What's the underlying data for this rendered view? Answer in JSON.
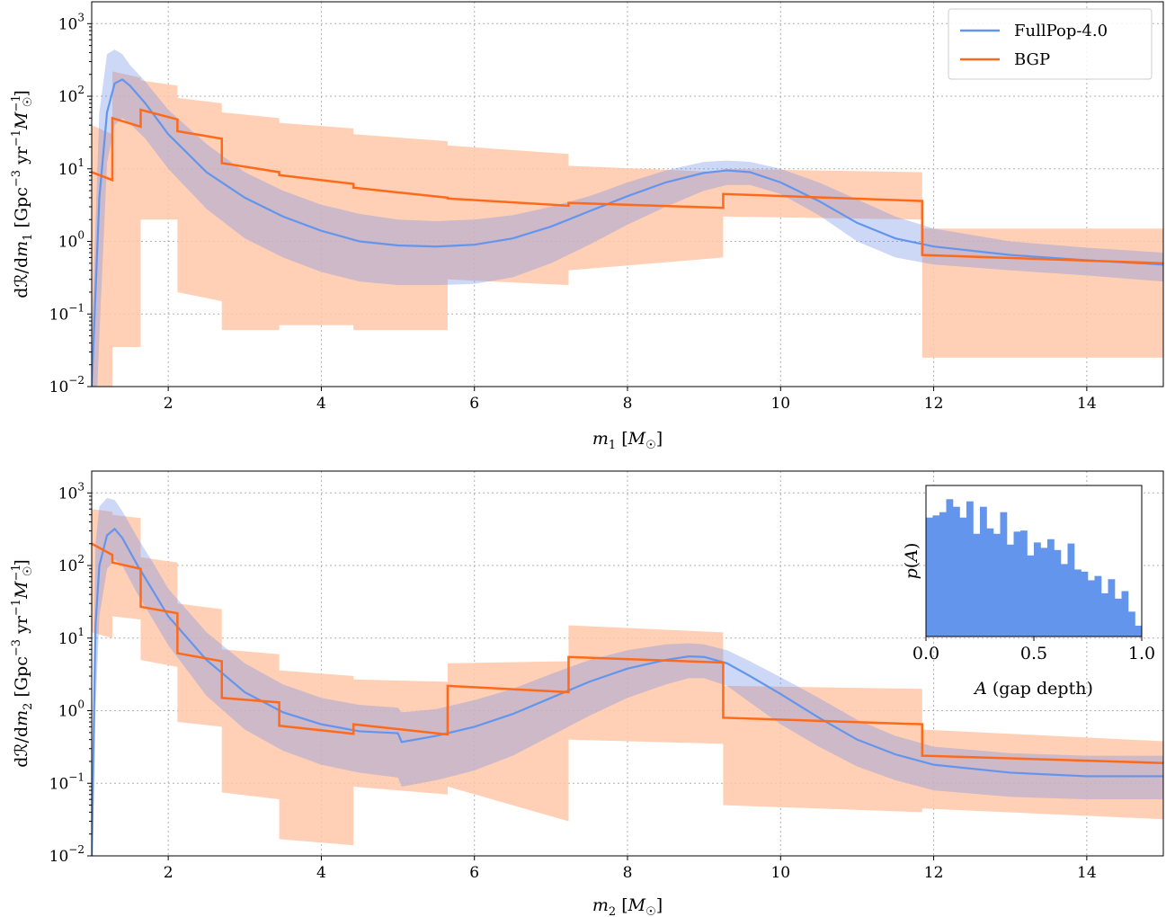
{
  "colors": {
    "fullpop": "#6495ed",
    "fullpop_band": "#c3d5fb",
    "bgp": "#ff6a1a",
    "bgp_band": "#ffc8a8"
  },
  "legend": {
    "items": [
      {
        "label": "FullPop-4.0",
        "color": "#6495ed"
      },
      {
        "label": "BGP",
        "color": "#ff6a1a"
      }
    ],
    "placement": "top-right"
  },
  "chart_data": [
    {
      "type": "line",
      "xlabel": "m₁ [M☉]",
      "ylabel": "dℛ/dm₁ [Gpc⁻³ yr⁻¹ M☉⁻¹]",
      "xlim": [
        1,
        15
      ],
      "ylim": [
        0.01,
        2000
      ],
      "yscale": "log",
      "grid": true,
      "xticks": [
        2,
        4,
        6,
        8,
        10,
        12,
        14
      ],
      "yticks": [
        {
          "v": 0.01,
          "b": "10",
          "e": "−2"
        },
        {
          "v": 0.1,
          "b": "10",
          "e": "−1"
        },
        {
          "v": 1,
          "b": "10",
          "e": "0"
        },
        {
          "v": 10,
          "b": "10",
          "e": "1"
        },
        {
          "v": 100,
          "b": "10",
          "e": "2"
        },
        {
          "v": 1000,
          "b": "10",
          "e": "3"
        }
      ],
      "series": [
        {
          "name": "FullPop-4.0",
          "kind": "smooth",
          "x": [
            1.0,
            1.1,
            1.2,
            1.3,
            1.4,
            1.5,
            1.7,
            2.0,
            2.5,
            3.0,
            3.5,
            4.0,
            4.5,
            5.0,
            5.5,
            6.0,
            6.5,
            7.0,
            7.5,
            8.0,
            8.5,
            9.0,
            9.3,
            9.6,
            10.0,
            10.5,
            11.0,
            11.5,
            12.0,
            13.0,
            14.0,
            15.0
          ],
          "median": [
            0.01,
            4,
            60,
            150,
            170,
            140,
            80,
            30,
            9,
            4,
            2.2,
            1.4,
            1.0,
            0.88,
            0.85,
            0.9,
            1.1,
            1.6,
            2.6,
            4.2,
            6.5,
            8.8,
            9.5,
            9,
            6.5,
            3.6,
            1.8,
            1.1,
            0.85,
            0.65,
            0.55,
            0.48
          ],
          "lower": [
            0.0001,
            0.05,
            12,
            40,
            50,
            42,
            26,
            10,
            2.8,
            1.1,
            0.6,
            0.38,
            0.28,
            0.25,
            0.25,
            0.26,
            0.32,
            0.5,
            0.9,
            1.7,
            3,
            5,
            6,
            6,
            4.5,
            2.3,
            1.0,
            0.6,
            0.48,
            0.4,
            0.34,
            0.28
          ],
          "upper": [
            0.05,
            60,
            380,
            440,
            380,
            270,
            160,
            65,
            22,
            9,
            5,
            3.2,
            2.4,
            2.0,
            1.9,
            2.0,
            2.3,
            3.0,
            4.2,
            6.5,
            9.5,
            12.5,
            13,
            12.5,
            10,
            6.5,
            3.8,
            2.2,
            1.5,
            1.0,
            0.82,
            0.7
          ]
        },
        {
          "name": "BGP",
          "kind": "step",
          "edges": [
            1.0,
            1.27,
            1.64,
            2.12,
            2.7,
            3.45,
            4.42,
            5.65,
            7.23,
            9.25,
            11.85,
            15.0
          ],
          "median": [
            9,
            50,
            65,
            33,
            12,
            8.2,
            5.5,
            3.9,
            3.4,
            4.5,
            0.65
          ],
          "end_values": [
            7,
            38,
            48,
            26,
            9,
            6.2,
            4.0,
            3.1,
            2.9,
            3.6,
            0.5
          ],
          "lower": [
            0.008,
            0.035,
            2.0,
            0.2,
            0.06,
            0.07,
            0.06,
            0.3,
            0.4,
            2.2,
            0.025
          ],
          "lower_end": [
            0.003,
            0.035,
            2.0,
            0.15,
            0.06,
            0.07,
            0.06,
            0.25,
            0.6,
            2.0,
            0.025
          ],
          "upper": [
            40,
            220,
            165,
            95,
            60,
            43,
            30,
            21,
            11,
            10,
            1.5
          ],
          "upper_end": [
            30,
            180,
            140,
            80,
            50,
            36,
            24,
            16,
            9,
            9,
            1.5
          ]
        }
      ]
    },
    {
      "type": "line",
      "xlabel": "m₂ [M☉]",
      "ylabel": "dℛ/dm₂ [Gpc⁻³ yr⁻¹ M☉⁻¹]",
      "xlim": [
        1,
        15
      ],
      "ylim": [
        0.01,
        2000
      ],
      "yscale": "log",
      "grid": true,
      "xticks": [
        2,
        4,
        6,
        8,
        10,
        12,
        14
      ],
      "yticks": [
        {
          "v": 0.01,
          "b": "10",
          "e": "−2"
        },
        {
          "v": 0.1,
          "b": "10",
          "e": "−1"
        },
        {
          "v": 1,
          "b": "10",
          "e": "0"
        },
        {
          "v": 10,
          "b": "10",
          "e": "1"
        },
        {
          "v": 100,
          "b": "10",
          "e": "2"
        },
        {
          "v": 1000,
          "b": "10",
          "e": "3"
        }
      ],
      "series": [
        {
          "name": "FullPop-4.0",
          "kind": "smooth",
          "x": [
            1.0,
            1.05,
            1.1,
            1.2,
            1.3,
            1.4,
            1.6,
            1.8,
            2.0,
            2.5,
            3.0,
            3.5,
            4.0,
            4.5,
            5.0,
            5.05,
            5.5,
            6.0,
            6.5,
            7.0,
            7.5,
            8.0,
            8.5,
            8.8,
            9.0,
            9.3,
            9.6,
            10.0,
            10.5,
            11.0,
            11.5,
            12.0,
            13.0,
            14.0,
            15.0
          ],
          "median": [
            0.01,
            15,
            100,
            260,
            320,
            240,
            100,
            45,
            20,
            5,
            1.8,
            0.95,
            0.65,
            0.52,
            0.49,
            0.37,
            0.45,
            0.6,
            0.9,
            1.5,
            2.5,
            3.8,
            5.0,
            5.6,
            5.5,
            4.5,
            3.0,
            1.7,
            0.8,
            0.4,
            0.25,
            0.18,
            0.14,
            0.125,
            0.125
          ],
          "lower": [
            0.001,
            1,
            20,
            90,
            120,
            100,
            40,
            18,
            8,
            1.6,
            0.55,
            0.28,
            0.18,
            0.14,
            0.12,
            0.09,
            0.11,
            0.15,
            0.24,
            0.45,
            0.85,
            1.5,
            2.3,
            2.8,
            2.8,
            2.2,
            1.3,
            0.65,
            0.32,
            0.17,
            0.11,
            0.08,
            0.065,
            0.06,
            0.06
          ],
          "upper": [
            0.1,
            200,
            650,
            850,
            800,
            560,
            240,
            110,
            48,
            12,
            4.5,
            2.3,
            1.5,
            1.2,
            1.1,
            0.95,
            1.05,
            1.4,
            2.0,
            3.2,
            5.0,
            6.8,
            8.2,
            8.5,
            8.2,
            6.8,
            4.8,
            2.9,
            1.5,
            0.75,
            0.45,
            0.32,
            0.26,
            0.24,
            0.24
          ]
        },
        {
          "name": "BGP",
          "kind": "step",
          "edges": [
            1.0,
            1.27,
            1.64,
            2.12,
            2.7,
            3.45,
            4.42,
            5.65,
            7.23,
            9.25,
            11.85,
            15.0
          ],
          "median": [
            200,
            110,
            27,
            6.2,
            1.5,
            0.62,
            0.65,
            2.2,
            5.5,
            0.8,
            0.24
          ],
          "end_values": [
            140,
            90,
            22,
            4.8,
            1.3,
            0.48,
            0.47,
            1.8,
            4.6,
            0.65,
            0.19
          ],
          "lower": [
            12,
            20,
            5,
            0.7,
            0.075,
            0.017,
            0.09,
            0.09,
            0.4,
            0.05,
            0.045
          ],
          "lower_end": [
            10,
            18,
            4,
            0.6,
            0.06,
            0.014,
            0.07,
            0.03,
            0.35,
            0.04,
            0.032
          ],
          "upper": [
            600,
            500,
            130,
            30,
            7,
            3.6,
            2.7,
            4.5,
            15,
            2.2,
            0.55
          ],
          "upper_end": [
            550,
            450,
            110,
            25,
            6,
            3.0,
            2.5,
            4.8,
            12,
            2.0,
            0.38
          ]
        }
      ]
    },
    {
      "type": "bar",
      "role": "inset histogram",
      "xlabel": "A (gap depth)",
      "ylabel": "p(A)",
      "xlim": [
        0,
        1
      ],
      "xticks": [
        "0.0",
        "0.5",
        "1.0"
      ],
      "bin_width": 0.03125,
      "values": [
        1.1,
        1.12,
        1.15,
        1.27,
        1.2,
        1.1,
        1.25,
        0.95,
        1.2,
        1.0,
        0.95,
        1.15,
        0.85,
        0.97,
        0.98,
        0.75,
        0.87,
        0.82,
        0.9,
        0.8,
        0.67,
        0.86,
        0.62,
        0.6,
        0.52,
        0.56,
        0.4,
        0.53,
        0.35,
        0.42,
        0.23,
        0.1
      ]
    }
  ]
}
